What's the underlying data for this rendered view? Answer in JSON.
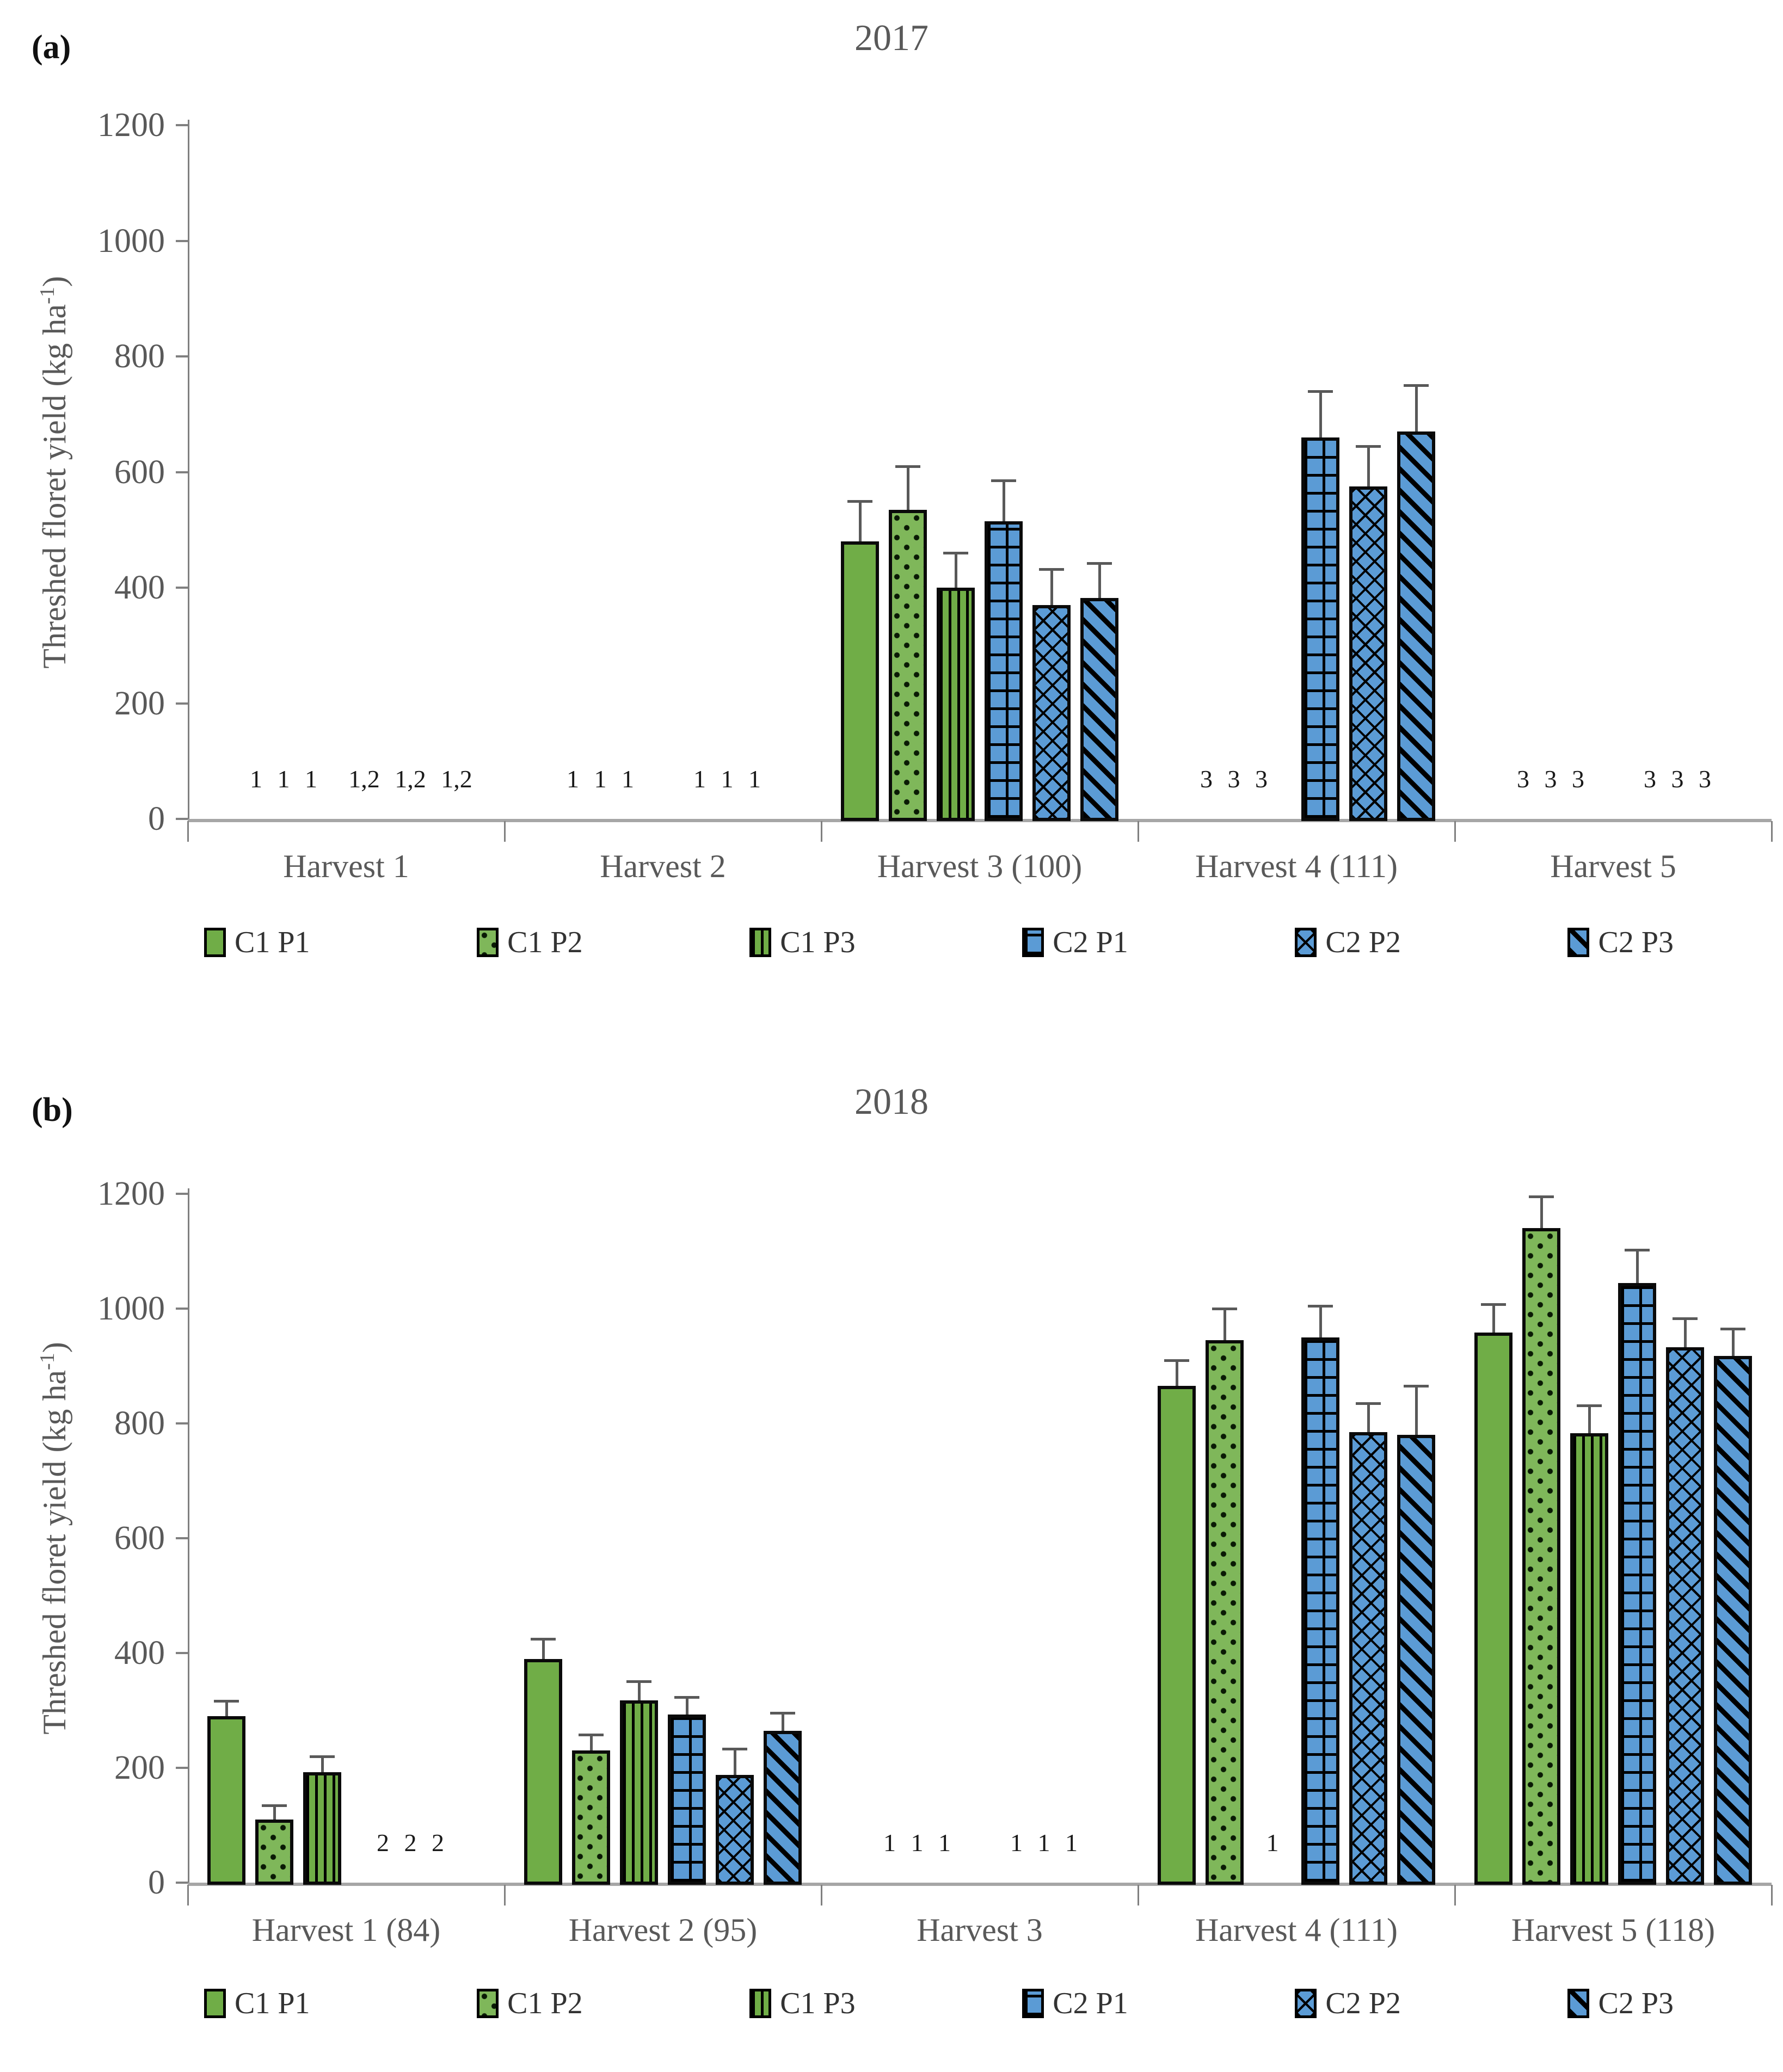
{
  "colors": {
    "series_green": "#70AD47",
    "series_blue": "#5B9BD5",
    "axis_line": "#a6a6a6",
    "tick_text": "#595959",
    "title_text": "#595959",
    "error_bar": "#595959",
    "bar_outline": "#000000"
  },
  "chart_data": [
    {
      "type": "bar",
      "panel_label": "(a)",
      "title": "2017",
      "ylabel_main": "Threshed floret yield (kg ha",
      "ylabel_sup": "-1",
      "ylabel_close": ")",
      "ylim": [
        0,
        1200
      ],
      "ytick_step": 200,
      "yticks": [
        "0",
        "200",
        "400",
        "600",
        "800",
        "1000",
        "1200"
      ],
      "grid": "off",
      "legend_position": "bottom",
      "categories": [
        "Harvest 1",
        "Harvest 2",
        "Harvest 3 (100)",
        "Harvest 4 (111)",
        "Harvest 5"
      ],
      "series": [
        {
          "name": "C1 P1",
          "pattern": "solid-green",
          "values": [
            null,
            null,
            480,
            null,
            null
          ],
          "errors": [
            null,
            null,
            70,
            null,
            null
          ]
        },
        {
          "name": "C1 P2",
          "pattern": "dots-green",
          "values": [
            null,
            null,
            535,
            null,
            null
          ],
          "errors": [
            null,
            null,
            75,
            null,
            null
          ]
        },
        {
          "name": "C1 P3",
          "pattern": "vstripes-green",
          "values": [
            null,
            null,
            400,
            null,
            null
          ],
          "errors": [
            null,
            null,
            60,
            null,
            null
          ]
        },
        {
          "name": "C2 P1",
          "pattern": "grid-blue",
          "values": [
            null,
            null,
            515,
            660,
            null
          ],
          "errors": [
            null,
            null,
            70,
            80,
            null
          ]
        },
        {
          "name": "C2 P2",
          "pattern": "crosshatch-blue",
          "values": [
            null,
            null,
            370,
            575,
            null
          ],
          "errors": [
            null,
            null,
            62,
            70,
            null
          ]
        },
        {
          "name": "C2 P3",
          "pattern": "diagonal-blue",
          "values": [
            null,
            null,
            382,
            670,
            null
          ],
          "errors": [
            null,
            null,
            60,
            80,
            null
          ]
        }
      ],
      "annotations": [
        {
          "category": 0,
          "group": "c1",
          "text": "1 1 1"
        },
        {
          "category": 0,
          "group": "c2",
          "text": "1,2 1,2 1,2"
        },
        {
          "category": 1,
          "group": "c1",
          "text": "1 1 1"
        },
        {
          "category": 1,
          "group": "c2",
          "text": "1 1 1"
        },
        {
          "category": 3,
          "group": "c1",
          "text": "3 3 3"
        },
        {
          "category": 4,
          "group": "c1",
          "text": "3 3 3"
        },
        {
          "category": 4,
          "group": "c2",
          "text": "3 3 3"
        }
      ]
    },
    {
      "type": "bar",
      "panel_label": "(b)",
      "title": "2018",
      "ylabel_main": "Threshed floret yield (kg ha",
      "ylabel_sup": "-1",
      "ylabel_close": ")",
      "ylim": [
        0,
        1200
      ],
      "ytick_step": 200,
      "yticks": [
        "0",
        "200",
        "400",
        "600",
        "800",
        "1000",
        "1200"
      ],
      "grid": "off",
      "legend_position": "bottom",
      "categories": [
        "Harvest 1 (84)",
        "Harvest 2 (95)",
        "Harvest 3",
        "Harvest 4 (111)",
        "Harvest 5 (118)"
      ],
      "series": [
        {
          "name": "C1 P1",
          "pattern": "solid-green",
          "values": [
            290,
            390,
            null,
            865,
            958
          ],
          "errors": [
            27,
            35,
            null,
            45,
            50
          ]
        },
        {
          "name": "C1 P2",
          "pattern": "dots-green",
          "values": [
            110,
            230,
            null,
            945,
            1140
          ],
          "errors": [
            25,
            28,
            null,
            55,
            55
          ]
        },
        {
          "name": "C1 P3",
          "pattern": "vstripes-green",
          "values": [
            192,
            318,
            null,
            null,
            783
          ],
          "errors": [
            28,
            33,
            null,
            null,
            48
          ]
        },
        {
          "name": "C2 P1",
          "pattern": "grid-blue",
          "values": [
            null,
            293,
            null,
            950,
            1045
          ],
          "errors": [
            null,
            30,
            null,
            55,
            57
          ]
        },
        {
          "name": "C2 P2",
          "pattern": "crosshatch-blue",
          "values": [
            null,
            188,
            null,
            785,
            933
          ],
          "errors": [
            null,
            45,
            null,
            50,
            50
          ]
        },
        {
          "name": "C2 P3",
          "pattern": "diagonal-blue",
          "values": [
            null,
            264,
            null,
            780,
            918
          ],
          "errors": [
            null,
            32,
            null,
            85,
            47
          ]
        }
      ],
      "annotations": [
        {
          "category": 0,
          "group": "c2",
          "text": "2 2 2"
        },
        {
          "category": 2,
          "group": "c1",
          "text": "1 1 1"
        },
        {
          "category": 2,
          "group": "c2",
          "text": "1 1 1"
        },
        {
          "category": 3,
          "group": "slot2",
          "text": "1"
        }
      ]
    }
  ]
}
